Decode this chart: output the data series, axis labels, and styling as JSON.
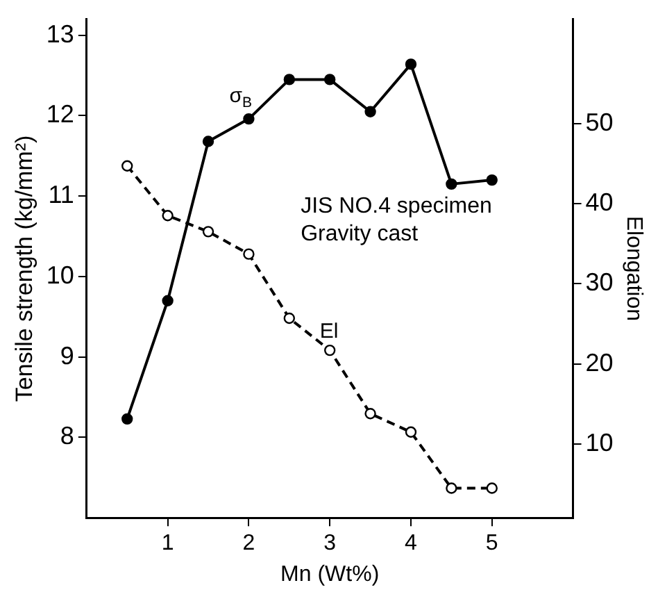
{
  "chart_data": {
    "type": "line",
    "xlabel": "Mn (Wt%)",
    "ylabel": "Tensile strength (kg/mm²)",
    "y2label": "Elongation",
    "x": [
      0.5,
      1.0,
      1.5,
      2.0,
      2.5,
      3.0,
      3.5,
      4.0,
      4.5,
      5.0
    ],
    "series": [
      {
        "name": "σ$_{B}$",
        "color": "#000000",
        "marker": "circle",
        "line_style": "solid",
        "values": [
          8.23,
          9.7,
          11.68,
          11.96,
          12.45,
          12.45,
          12.05,
          12.64,
          11.15,
          11.2
        ]
      },
      {
        "name": "El",
        "color": "#000000",
        "marker": "circle",
        "line_style": "dashed",
        "axis": "y2",
        "values": [
          44.7,
          38.5,
          36.5,
          33.7,
          25.7,
          21.7,
          13.8,
          11.5,
          4.5,
          4.5
        ]
      }
    ],
    "xlim": [
      0,
      6
    ],
    "xticks": [
      1,
      2,
      3,
      4,
      5
    ],
    "ylim": [
      7,
      13.2
    ],
    "yticks": [
      8,
      9,
      10,
      11,
      12,
      13
    ],
    "y2lim": [
      0.8,
      63
    ],
    "y2ticks": [
      10,
      20,
      30,
      40,
      50
    ],
    "annotations": [
      "JIS NO.4 specimen",
      "Gravity cast"
    ],
    "grid": false,
    "legend": false
  }
}
